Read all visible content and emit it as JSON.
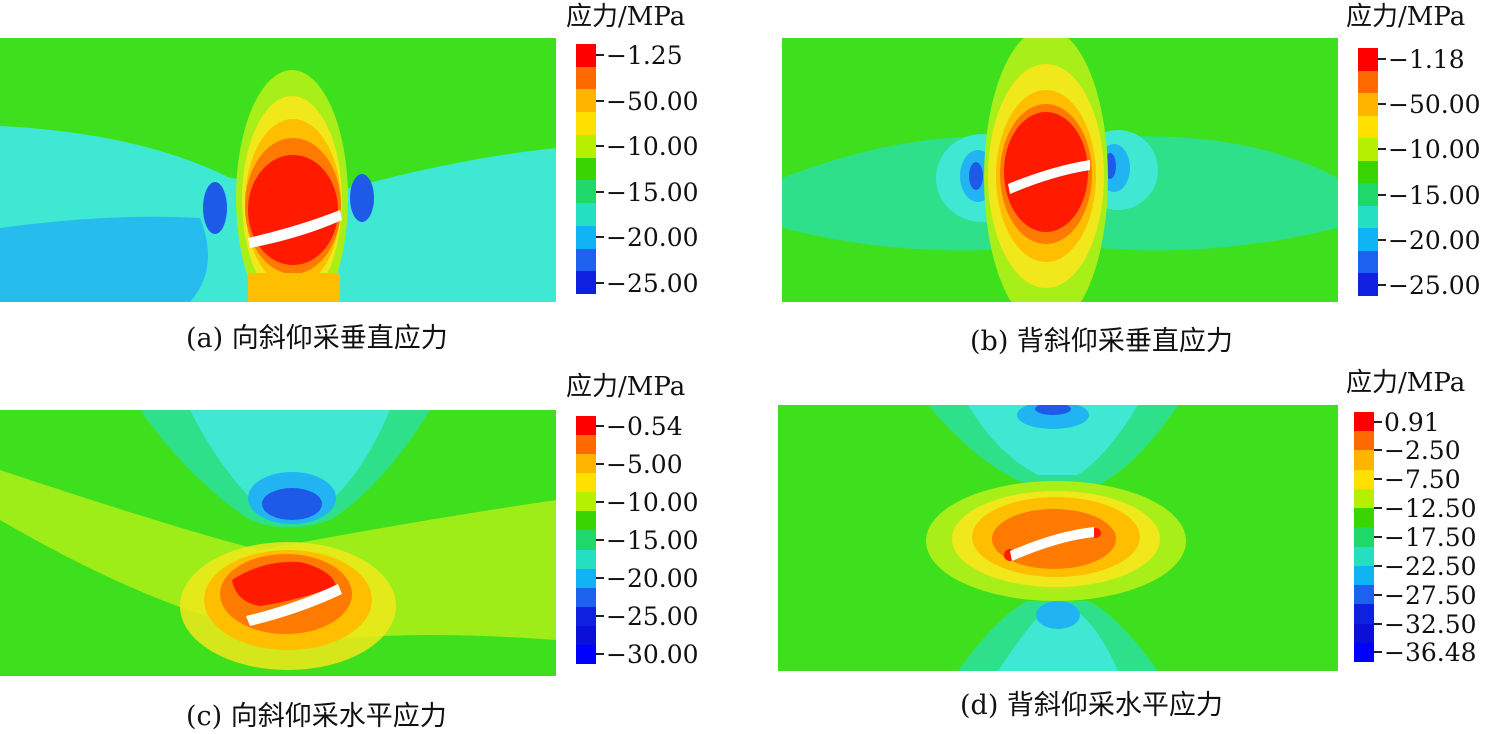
{
  "legend_title": "应力/MPa",
  "panels": [
    {
      "id": "a",
      "caption": "(a)  向斜仰采垂直应力",
      "legend_labels": [
        "−1.25",
        "−50.00",
        "−10.00",
        "−15.00",
        "−20.00",
        "−25.00"
      ],
      "colors": [
        "#ff0000",
        "#ff6a00",
        "#ffb400",
        "#ffe000",
        "#b6f000",
        "#3ad400",
        "#1ed86a",
        "#25e0c0",
        "#10b4f4",
        "#1c62ee",
        "#1020e0"
      ]
    },
    {
      "id": "b",
      "caption": "(b)  背斜仰采垂直应力",
      "legend_labels": [
        "−1.18",
        "−50.00",
        "−10.00",
        "−15.00",
        "−20.00",
        "−25.00"
      ],
      "colors": [
        "#ff0000",
        "#ff6a00",
        "#ffb400",
        "#ffe000",
        "#b6f000",
        "#3ad400",
        "#1ed86a",
        "#25e0c0",
        "#10b4f4",
        "#1c62ee",
        "#1020e0"
      ]
    },
    {
      "id": "c",
      "caption": "(c)  向斜仰采水平应力",
      "legend_labels": [
        "−0.54",
        "−5.00",
        "−10.00",
        "−15.00",
        "−20.00",
        "−25.00",
        "−30.00"
      ],
      "colors": [
        "#ff0000",
        "#ff6a00",
        "#ffb400",
        "#ffe000",
        "#b6f000",
        "#3ad400",
        "#1ed86a",
        "#25e0c0",
        "#10b4f4",
        "#1c62ee",
        "#1020e0",
        "#0a10d8",
        "#0000ff"
      ]
    },
    {
      "id": "d",
      "caption": "(d)  背斜仰采水平应力",
      "legend_labels": [
        "0.91",
        "−2.50",
        "−7.50",
        "−12.50",
        "−17.50",
        "−22.50",
        "−27.50",
        "−32.50",
        "−36.48"
      ],
      "colors": [
        "#ff0000",
        "#ff6a00",
        "#ffb400",
        "#ffe000",
        "#b6f000",
        "#3ad400",
        "#1ed86a",
        "#25e0c0",
        "#10b4f4",
        "#1c62ee",
        "#1020e0",
        "#0a10d8",
        "#0000ff"
      ]
    }
  ],
  "palette": {
    "red": "#ff1a00",
    "orange": "#ff7a00",
    "yellow_orange": "#ffbf00",
    "yellow": "#f0e81a",
    "yellow_green": "#a8ee18",
    "green": "#3ee01e",
    "green_cyan": "#2ee08a",
    "cyan": "#3ee8d2",
    "sky": "#22b4f2",
    "blue": "#1e5ae8",
    "deep_blue": "#1420dc",
    "opening": "#ffffff"
  }
}
